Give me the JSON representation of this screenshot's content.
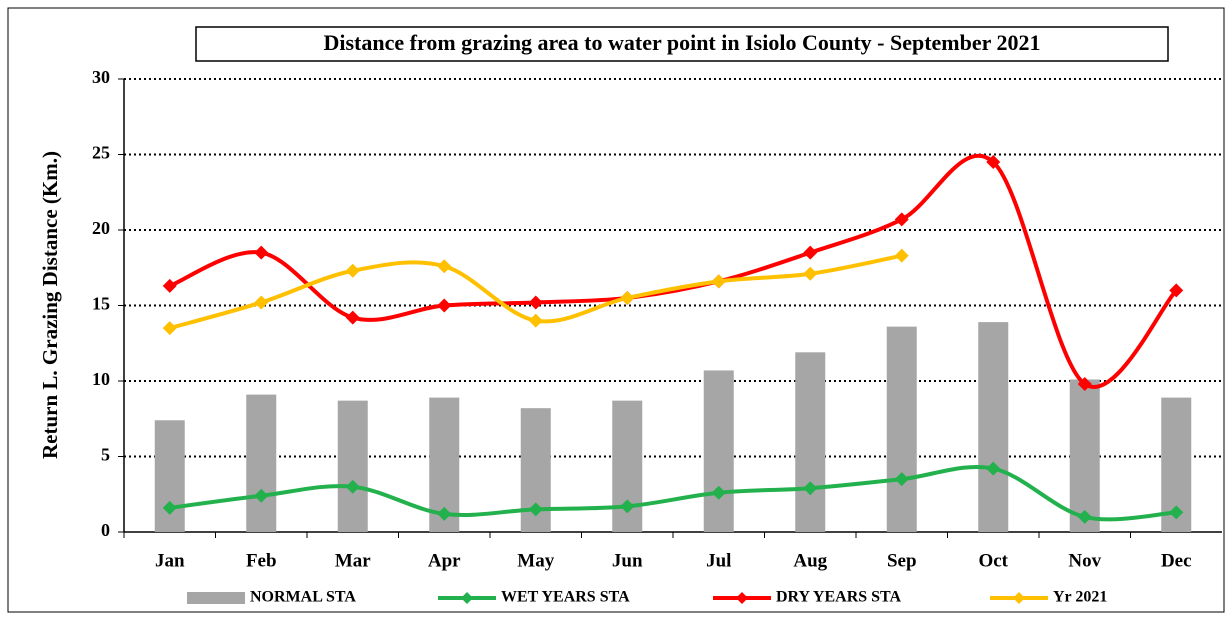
{
  "chart_data": {
    "type": "bar-line",
    "title": "Distance from grazing area to water point in Isiolo County - September 2021",
    "y_label": "Return L. Grazing Distance (Km.)",
    "categories": [
      "Jan",
      "Feb",
      "Mar",
      "Apr",
      "May",
      "Jun",
      "Jul",
      "Aug",
      "Sep",
      "Oct",
      "Nov",
      "Dec"
    ],
    "series": [
      {
        "name": "NORMAL STA",
        "type": "bar",
        "color": "#a6a6a6",
        "values": [
          7.4,
          9.1,
          8.7,
          8.9,
          8.2,
          8.7,
          10.7,
          11.9,
          13.6,
          13.9,
          10.1,
          8.9
        ]
      },
      {
        "name": "WET YEARS STA",
        "type": "line",
        "color": "#22b14c",
        "values": [
          1.6,
          2.4,
          3.0,
          1.2,
          1.5,
          1.7,
          2.6,
          2.9,
          3.5,
          4.2,
          1.0,
          1.3
        ]
      },
      {
        "name": "DRY YEARS STA",
        "type": "line",
        "color": "#ff0000",
        "values": [
          16.3,
          18.5,
          14.2,
          15.0,
          15.2,
          15.5,
          16.6,
          18.5,
          20.7,
          24.5,
          9.8,
          16.0
        ]
      },
      {
        "name": "Yr 2021",
        "type": "line",
        "color": "#ffc000",
        "values": [
          13.5,
          15.2,
          17.3,
          17.6,
          14.0,
          15.5,
          16.6,
          17.1,
          18.3,
          null,
          null,
          null
        ]
      }
    ],
    "ylim": [
      0,
      30
    ],
    "yticks": [
      0,
      5,
      10,
      15,
      20,
      25,
      30
    ],
    "grid": true,
    "legend": "bottom"
  }
}
